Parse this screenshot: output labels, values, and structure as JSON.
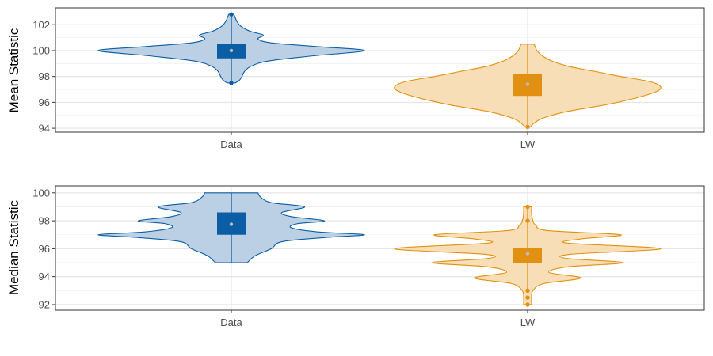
{
  "chart_data": [
    {
      "type": "violin",
      "ylabel": "Mean Statistic",
      "xlabel": "",
      "categories": [
        "Data",
        "LW"
      ],
      "ylim": [
        93.7,
        103.3
      ],
      "yticks": [
        94,
        96,
        98,
        100,
        102
      ],
      "grid": true,
      "series": [
        {
          "category": "Data",
          "color": "#0b5da5",
          "fill": "#b7cde3",
          "box": {
            "q1": 99.4,
            "median": 100.0,
            "q3": 100.5,
            "whisker_low": 97.5,
            "whisker_high": 102.8
          },
          "outliers": [
            102.8,
            97.5
          ],
          "density": [
            [
              97.5,
              0.03
            ],
            [
              97.7,
              0.06
            ],
            [
              98.0,
              0.08
            ],
            [
              98.4,
              0.1
            ],
            [
              98.8,
              0.15
            ],
            [
              99.2,
              0.28
            ],
            [
              99.6,
              0.62
            ],
            [
              100.0,
              1.0
            ],
            [
              100.3,
              0.66
            ],
            [
              100.6,
              0.3
            ],
            [
              100.9,
              0.2
            ],
            [
              101.2,
              0.24
            ],
            [
              101.5,
              0.14
            ],
            [
              101.9,
              0.07
            ],
            [
              102.3,
              0.04
            ],
            [
              102.8,
              0.02
            ]
          ]
        },
        {
          "category": "LW",
          "color": "#e29011",
          "fill": "#f7dcb3",
          "box": {
            "q1": 96.5,
            "median": 97.4,
            "q3": 98.2,
            "whisker_low": 94.1,
            "whisker_high": 100.5
          },
          "outliers": [
            94.1
          ],
          "density": [
            [
              94.1,
              0.02
            ],
            [
              94.4,
              0.05
            ],
            [
              94.8,
              0.12
            ],
            [
              95.3,
              0.3
            ],
            [
              95.8,
              0.58
            ],
            [
              96.3,
              0.8
            ],
            [
              96.8,
              0.96
            ],
            [
              97.2,
              1.0
            ],
            [
              97.6,
              0.92
            ],
            [
              98.0,
              0.7
            ],
            [
              98.4,
              0.5
            ],
            [
              98.8,
              0.3
            ],
            [
              99.2,
              0.18
            ],
            [
              99.6,
              0.11
            ],
            [
              100.0,
              0.07
            ],
            [
              100.5,
              0.05
            ]
          ]
        }
      ]
    },
    {
      "type": "violin",
      "ylabel": "Median Statistic",
      "xlabel": "",
      "categories": [
        "Data",
        "LW"
      ],
      "ylim": [
        91.6,
        100.5
      ],
      "yticks": [
        92,
        94,
        96,
        98,
        100
      ],
      "grid": true,
      "series": [
        {
          "category": "Data",
          "color": "#0b5da5",
          "fill": "#b7cde3",
          "box": {
            "q1": 97.0,
            "median": 97.75,
            "q3": 98.6,
            "whisker_low": 95.0,
            "whisker_high": 100.0
          },
          "outliers": [],
          "density": [
            [
              95.0,
              0.12
            ],
            [
              95.5,
              0.18
            ],
            [
              96.0,
              0.3
            ],
            [
              96.5,
              0.38
            ],
            [
              96.8,
              0.7
            ],
            [
              97.0,
              1.0
            ],
            [
              97.2,
              0.65
            ],
            [
              97.5,
              0.45
            ],
            [
              97.8,
              0.5
            ],
            [
              98.0,
              0.7
            ],
            [
              98.3,
              0.45
            ],
            [
              98.6,
              0.38
            ],
            [
              99.0,
              0.55
            ],
            [
              99.3,
              0.3
            ],
            [
              99.7,
              0.22
            ],
            [
              100.0,
              0.2
            ]
          ]
        },
        {
          "category": "LW",
          "color": "#e29011",
          "fill": "#f7dcb3",
          "box": {
            "q1": 95.0,
            "median": 95.65,
            "q3": 96.05,
            "whisker_low": 93.0,
            "whisker_high": 99.0
          },
          "outliers": [
            99.0,
            98.0,
            93.0,
            92.5,
            92.0
          ],
          "density": [
            [
              92.0,
              0.03
            ],
            [
              92.5,
              0.03
            ],
            [
              93.0,
              0.04
            ],
            [
              93.5,
              0.12
            ],
            [
              93.9,
              0.4
            ],
            [
              94.3,
              0.16
            ],
            [
              94.7,
              0.3
            ],
            [
              95.0,
              0.72
            ],
            [
              95.3,
              0.3
            ],
            [
              95.6,
              0.32
            ],
            [
              96.0,
              1.0
            ],
            [
              96.4,
              0.3
            ],
            [
              96.7,
              0.4
            ],
            [
              97.0,
              0.7
            ],
            [
              97.3,
              0.15
            ],
            [
              97.7,
              0.06
            ],
            [
              98.0,
              0.04
            ],
            [
              98.5,
              0.03
            ],
            [
              99.0,
              0.03
            ]
          ]
        }
      ]
    }
  ]
}
